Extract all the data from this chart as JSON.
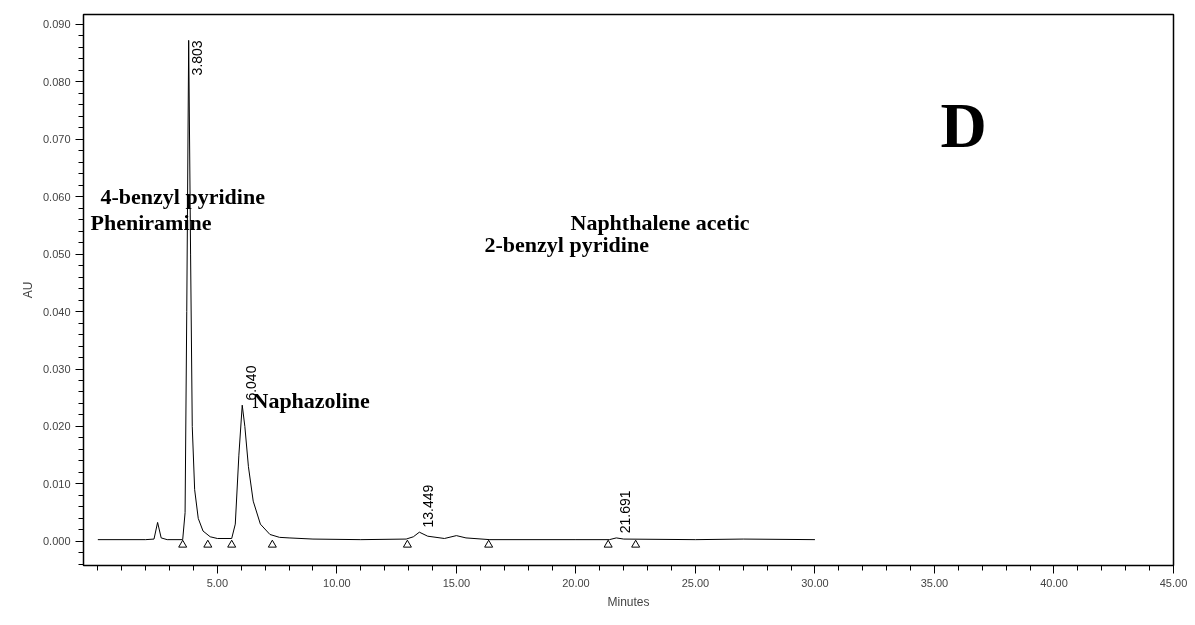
{
  "chart_data": {
    "type": "line",
    "xlabel": "Minutes",
    "ylabel": "AU",
    "xlim": [
      -0.6,
      45
    ],
    "ylim": [
      -0.0042,
      0.0917
    ],
    "xticks": [
      {
        "value": 5,
        "label": "5.00"
      },
      {
        "value": 10,
        "label": "10.00"
      },
      {
        "value": 15,
        "label": "15.00"
      },
      {
        "value": 20,
        "label": "20.00"
      },
      {
        "value": 25,
        "label": "25.00"
      },
      {
        "value": 30,
        "label": "30.00"
      },
      {
        "value": 35,
        "label": "35.00"
      },
      {
        "value": 40,
        "label": "40.00"
      },
      {
        "value": 45,
        "label": "45.00"
      }
    ],
    "yticks": [
      {
        "value": 0,
        "label": "0.000"
      },
      {
        "value": 0.01,
        "label": "0.010"
      },
      {
        "value": 0.02,
        "label": "0.020"
      },
      {
        "value": 0.03,
        "label": "0.030"
      },
      {
        "value": 0.04,
        "label": "0.040"
      },
      {
        "value": 0.05,
        "label": "0.050"
      },
      {
        "value": 0.06,
        "label": "0.060"
      },
      {
        "value": 0.07,
        "label": "0.070"
      },
      {
        "value": 0.08,
        "label": "0.080"
      },
      {
        "value": 0.09,
        "label": "0.090"
      }
    ],
    "grid": false,
    "series": [
      {
        "color": "#000000",
        "marker": "none",
        "line_style": "solid",
        "x": [
          0,
          2.0,
          2.35,
          2.5,
          2.65,
          2.9,
          3.55,
          3.65,
          3.72,
          3.8,
          3.88,
          3.95,
          4.05,
          4.2,
          4.4,
          4.7,
          5.0,
          5.6,
          5.75,
          5.9,
          6.04,
          6.15,
          6.3,
          6.5,
          6.8,
          7.2,
          7.6,
          8.0,
          9.0,
          11.0,
          12.9,
          13.2,
          13.45,
          13.8,
          14.5,
          15.0,
          15.4,
          16.4,
          20,
          21.4,
          21.69,
          22.0,
          25,
          27,
          30
        ],
        "values": [
          0.0003,
          0.0003,
          0.0004,
          0.0033,
          0.0006,
          0.0003,
          0.0003,
          0.005,
          0.04,
          0.0872,
          0.05,
          0.02,
          0.009,
          0.004,
          0.0018,
          0.0008,
          0.0005,
          0.0005,
          0.003,
          0.015,
          0.0237,
          0.02,
          0.013,
          0.007,
          0.003,
          0.0012,
          0.0007,
          0.0006,
          0.0004,
          0.0003,
          0.0004,
          0.0008,
          0.0016,
          0.0009,
          0.0005,
          0.001,
          0.0006,
          0.0003,
          0.0003,
          0.0003,
          0.0006,
          0.0004,
          0.0003,
          0.0004,
          0.0003
        ]
      },
      {
        "type": "scatter",
        "color": "#000000",
        "marker": "triangle",
        "x": [
          3.55,
          4.6,
          5.6,
          7.3,
          12.95,
          16.35,
          21.35,
          22.5
        ],
        "values": [
          -0.0006,
          -0.0006,
          -0.0006,
          -0.0006,
          -0.0006,
          -0.0006,
          -0.0006,
          -0.0006
        ]
      }
    ],
    "annotations": [
      {
        "text": "3.803",
        "x": 3.803,
        "y": 0.0872
      },
      {
        "text": "6.040",
        "x": 6.04,
        "y": 0.0237
      },
      {
        "text": "13.449",
        "x": 13.449,
        "y": 0.0016
      },
      {
        "text": "21.691",
        "x": 21.691,
        "y": 0.0006
      },
      "4-benzyl pyridine",
      "Pheniramine",
      "Naphazoline",
      "Naphthalene acetic",
      "2-benzyl pyridine",
      "D"
    ]
  }
}
